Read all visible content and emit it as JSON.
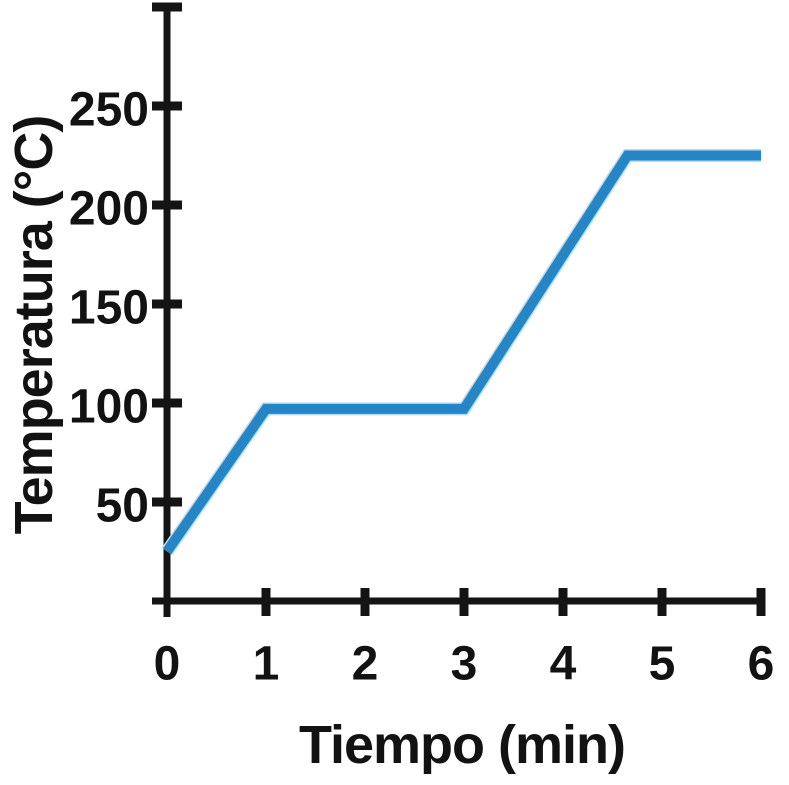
{
  "chart_data": {
    "type": "line",
    "title": "",
    "xlabel": "Tiempo (min)",
    "ylabel": "Temperatura (°C)",
    "xlim": [
      0,
      6
    ],
    "ylim": [
      0,
      300
    ],
    "x_ticks": [
      0,
      1,
      2,
      3,
      4,
      5,
      6
    ],
    "y_ticks": [
      50,
      100,
      150,
      200,
      250
    ],
    "grid": false,
    "legend": null,
    "axis_color": "#141414",
    "series": [
      {
        "name": "temperatura",
        "color": "#2585C5",
        "halo_color": "#b9dcf2",
        "points": [
          [
            0,
            25
          ],
          [
            1,
            97
          ],
          [
            3,
            97
          ],
          [
            4.65,
            225
          ],
          [
            6,
            225
          ]
        ]
      }
    ]
  }
}
